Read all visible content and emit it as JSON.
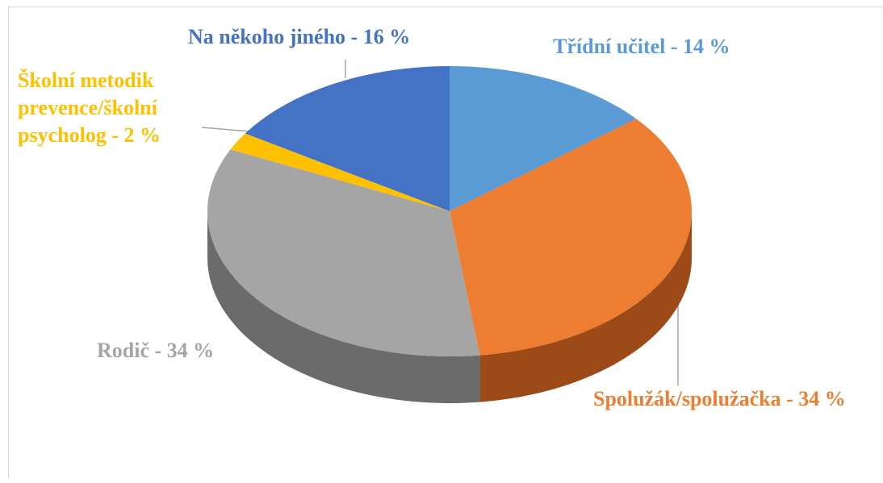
{
  "chart_data": {
    "type": "pie",
    "labels": [
      "Třídní učitel - 14 %",
      "Spolužák/spolužačka - 34 %",
      "Rodič - 34 %",
      "Školní metodik\nprevence/školní\npsycholog - 2 %",
      "Na někoho jiného - 16 %"
    ],
    "values": [
      14,
      34,
      34,
      2,
      16
    ],
    "colors": [
      "#5b9bd5",
      "#ed7d31",
      "#a5a5a5",
      "#ffc000",
      "#4472c4"
    ],
    "side_colors": [
      "#3f73a3",
      "#9c4a17",
      "#6b6b6b",
      "#b38600",
      "#2d4f8c"
    ]
  }
}
